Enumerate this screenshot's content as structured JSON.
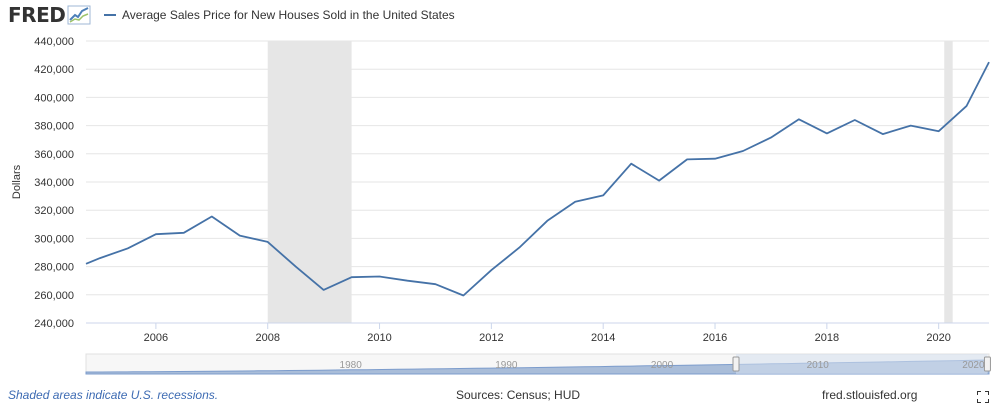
{
  "header": {
    "logo_text": "FRED",
    "series_label": "Average Sales Price for New Houses Sold in the United States"
  },
  "footer": {
    "recession_note": "Shaded areas indicate U.S. recessions.",
    "sources": "Sources: Census; HUD",
    "site": "fred.stlouisfed.org"
  },
  "colors": {
    "line": "#4572a7",
    "recession": "#e6e6e6",
    "grid": "#e6e6e6",
    "navigator_fill": "#a9bdd9",
    "navigator_window": "#d6e0ee"
  },
  "chart_data": {
    "type": "line",
    "title": "Average Sales Price for New Houses Sold in the United States",
    "ylabel": "Dollars",
    "xlabel": "",
    "ylim": [
      240000,
      440000
    ],
    "xlim": [
      2004.75,
      2020.9
    ],
    "grid": true,
    "y_ticks": [
      240000,
      260000,
      280000,
      300000,
      320000,
      340000,
      360000,
      380000,
      400000,
      420000,
      440000
    ],
    "y_tick_labels": [
      "240,000",
      "260,000",
      "280,000",
      "300,000",
      "320,000",
      "340,000",
      "360,000",
      "380,000",
      "400,000",
      "420,000",
      "440,000"
    ],
    "x_ticks": [
      2006,
      2008,
      2010,
      2012,
      2014,
      2016,
      2018,
      2020
    ],
    "x_tick_labels": [
      "2006",
      "2008",
      "2010",
      "2012",
      "2014",
      "2016",
      "2018",
      "2020"
    ],
    "recessions": [
      [
        2008.0,
        2009.5
      ],
      [
        2020.1,
        2020.25
      ]
    ],
    "series": [
      {
        "name": "Average Sales Price for New Houses Sold in the United States",
        "x": [
          2004.75,
          2005.0,
          2005.5,
          2006.0,
          2006.5,
          2007.0,
          2007.5,
          2008.0,
          2008.5,
          2009.0,
          2009.5,
          2010.0,
          2010.5,
          2011.0,
          2011.5,
          2012.0,
          2012.5,
          2013.0,
          2013.5,
          2014.0,
          2014.5,
          2015.0,
          2015.5,
          2016.0,
          2016.5,
          2017.0,
          2017.5,
          2018.0,
          2018.5,
          2019.0,
          2019.5,
          2020.0,
          2020.5,
          2020.9
        ],
        "values": [
          282000,
          286000,
          293000,
          303000,
          304000,
          315500,
          302000,
          297500,
          280000,
          263500,
          272500,
          273000,
          270000,
          267500,
          259500,
          277500,
          293500,
          312500,
          326000,
          330500,
          353000,
          341000,
          356000,
          356500,
          362000,
          371500,
          384500,
          374500,
          384000,
          374000,
          380000,
          376000,
          394000,
          425000
        ]
      }
    ],
    "navigator": {
      "tick_labels": [
        "1980",
        "1990",
        "2000",
        "2010",
        "2020"
      ],
      "range_start": 1963.0,
      "range_end": 2021.0,
      "selected": [
        2004.75,
        2020.9
      ]
    }
  }
}
